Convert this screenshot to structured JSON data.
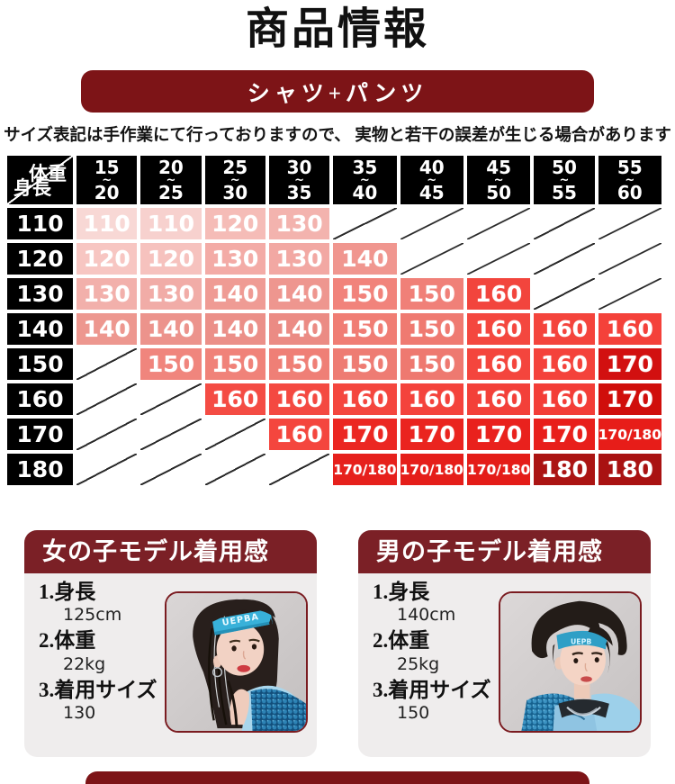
{
  "page": {
    "title": "商品情報",
    "banner": "シャツ+パンツ",
    "note": "サイズ表記は手作業にて行っておりますので、 実物と若干の誤差が生じる場合があります",
    "colors": {
      "banner_bg": "#7d1417",
      "table_header_bg": "#000000",
      "card_header_bg": "#7b2026",
      "card_body_bg": "#efeded",
      "photo_border": "#7a1b20",
      "bottom_stub_bg": "#7d1417"
    }
  },
  "size_table": {
    "corner": {
      "top_right": "体重",
      "bottom_left": "身長"
    },
    "tilde": "~",
    "weight_columns": [
      {
        "from": "15",
        "to": "20"
      },
      {
        "from": "20",
        "to": "25"
      },
      {
        "from": "25",
        "to": "30"
      },
      {
        "from": "30",
        "to": "35"
      },
      {
        "from": "35",
        "to": "40"
      },
      {
        "from": "40",
        "to": "45"
      },
      {
        "from": "45",
        "to": "50"
      },
      {
        "from": "50",
        "to": "55"
      },
      {
        "from": "55",
        "to": "60"
      }
    ],
    "rows": [
      {
        "height": "110",
        "cells": [
          {
            "t": "110",
            "c": "#f8d8d5"
          },
          {
            "t": "110",
            "c": "#f7d1ce"
          },
          {
            "t": "120",
            "c": "#f5bcb7"
          },
          {
            "t": "130",
            "c": "#f3b3ae"
          },
          null,
          null,
          null,
          null,
          null
        ]
      },
      {
        "height": "120",
        "cells": [
          {
            "t": "120",
            "c": "#f7c6c2"
          },
          {
            "t": "120",
            "c": "#f6c2be"
          },
          {
            "t": "130",
            "c": "#f3aba6"
          },
          {
            "t": "130",
            "c": "#f2a8a3"
          },
          {
            "t": "140",
            "c": "#f0968f"
          },
          null,
          null,
          null,
          null
        ]
      },
      {
        "height": "130",
        "cells": [
          {
            "t": "130",
            "c": "#f2b0ab"
          },
          {
            "t": "130",
            "c": "#f1aca7"
          },
          {
            "t": "140",
            "c": "#ef9b94"
          },
          {
            "t": "140",
            "c": "#ee968f"
          },
          {
            "t": "150",
            "c": "#f1837b"
          },
          {
            "t": "150",
            "c": "#f08078"
          },
          {
            "t": "160",
            "c": "#f2453d"
          },
          null,
          null
        ]
      },
      {
        "height": "140",
        "cells": [
          {
            "t": "140",
            "c": "#ed978f"
          },
          {
            "t": "140",
            "c": "#ec938c"
          },
          {
            "t": "140",
            "c": "#eb8f88"
          },
          {
            "t": "140",
            "c": "#eb8b84"
          },
          {
            "t": "150",
            "c": "#f07d74"
          },
          {
            "t": "150",
            "c": "#ef7a71"
          },
          {
            "t": "160",
            "c": "#f4473f"
          },
          {
            "t": "160",
            "c": "#f4443c"
          },
          {
            "t": "160",
            "c": "#f4413a"
          }
        ]
      },
      {
        "height": "150",
        "cells": [
          null,
          {
            "t": "150",
            "c": "#f0857d"
          },
          {
            "t": "150",
            "c": "#f08279"
          },
          {
            "t": "150",
            "c": "#ef7f76"
          },
          {
            "t": "150",
            "c": "#ee7c73"
          },
          {
            "t": "150",
            "c": "#ee7970"
          },
          {
            "t": "160",
            "c": "#f4453d"
          },
          {
            "t": "160",
            "c": "#f4423b"
          },
          {
            "t": "170",
            "c": "#d21010"
          }
        ]
      },
      {
        "height": "160",
        "cells": [
          null,
          null,
          {
            "t": "160",
            "c": "#f44c44"
          },
          {
            "t": "160",
            "c": "#f44941"
          },
          {
            "t": "160",
            "c": "#f4463e"
          },
          {
            "t": "160",
            "c": "#f4433c"
          },
          {
            "t": "160",
            "c": "#f34039"
          },
          {
            "t": "160",
            "c": "#f33d37"
          },
          {
            "t": "170",
            "c": "#d00e0b"
          }
        ]
      },
      {
        "height": "170",
        "cells": [
          null,
          null,
          null,
          {
            "t": "160",
            "c": "#f4463e"
          },
          {
            "t": "170",
            "c": "#eb2722"
          },
          {
            "t": "170",
            "c": "#ea241f"
          },
          {
            "t": "170",
            "c": "#e9211d"
          },
          {
            "t": "170",
            "c": "#e81f1b"
          },
          {
            "t": "170/180",
            "c": "#e71d19"
          }
        ]
      },
      {
        "height": "180",
        "cells": [
          null,
          null,
          null,
          null,
          {
            "t": "170/180",
            "c": "#e6201c"
          },
          {
            "t": "170/180",
            "c": "#e51e1a"
          },
          {
            "t": "170/180",
            "c": "#e41c18"
          },
          {
            "t": "180",
            "c": "#ab1413"
          },
          {
            "t": "180",
            "c": "#a91212"
          }
        ]
      }
    ]
  },
  "models": [
    {
      "header": "女の子モデル着用感",
      "items": [
        {
          "label": "1.身長",
          "value": "125cm"
        },
        {
          "label": "2.体重",
          "value": "22kg"
        },
        {
          "label": "3.着用サイズ",
          "value": "130"
        }
      ]
    },
    {
      "header": "男の子モデル着用感",
      "items": [
        {
          "label": "1.身長",
          "value": "140cm"
        },
        {
          "label": "2.体重",
          "value": "25kg"
        },
        {
          "label": "3.着用サイズ",
          "value": "150"
        }
      ]
    }
  ]
}
